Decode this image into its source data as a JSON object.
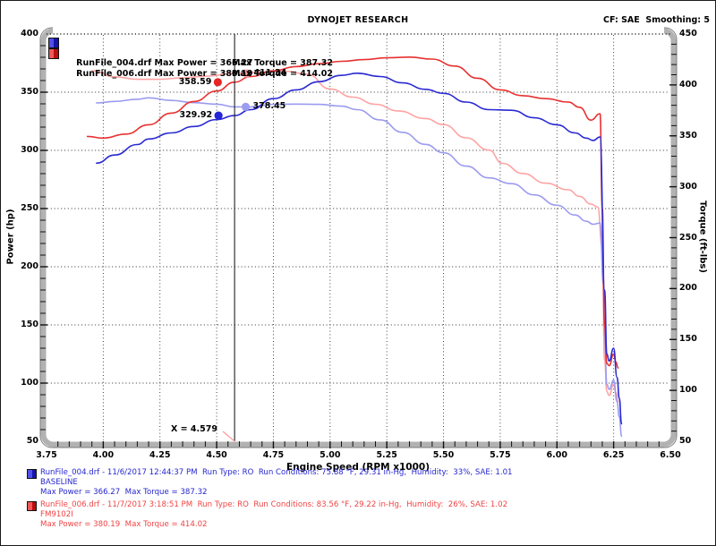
{
  "header": {
    "title": "DYNOJET RESEARCH",
    "cf_label": "CF: SAE  Smoothing: 5"
  },
  "legend": {
    "rows": [
      {
        "text1": "RunFile_004.drf Max Power = 366.27",
        "text2": "Max Torque = 387.32",
        "icon_left": "#5050e8",
        "icon_right": "#1515a8"
      },
      {
        "text1": "RunFile_006.drf Max Power = 380.19",
        "text2": "Max Torque = 414.02",
        "icon_left": "#f05858",
        "icon_right": "#b80f0f"
      }
    ]
  },
  "axes": {
    "x": {
      "label": "Engine Speed (RPM x1000)",
      "tick_labels": [
        "3.75",
        "4.00",
        "4.25",
        "4.50",
        "4.75",
        "5.00",
        "5.25",
        "5.50",
        "5.75",
        "6.00",
        "6.25",
        "6.50"
      ]
    },
    "y_left": {
      "label": "Power (hp)",
      "tick_labels": [
        "400",
        "350",
        "300",
        "250",
        "200",
        "150",
        "100",
        "50"
      ]
    },
    "y_right": {
      "label": "Torque (ft-lbs)",
      "tick_labels": [
        "450",
        "400",
        "350",
        "300",
        "250",
        "200",
        "150",
        "100",
        "50"
      ]
    }
  },
  "cursor": {
    "x_value": 4.579,
    "label": "X = 4.579",
    "line_color": "#222222",
    "leader_color": "#ff9a9a"
  },
  "markers": [
    {
      "label": "358.59",
      "axis": "power",
      "value": 358.59,
      "rpm": 4.505,
      "side": "left",
      "color": "#e82424"
    },
    {
      "label": "411.34",
      "axis": "torque",
      "value": 411.34,
      "rpm": 4.632,
      "side": "right",
      "color": "#ff9f9f"
    },
    {
      "label": "378.45",
      "axis": "torque",
      "value": 378.45,
      "rpm": 4.628,
      "side": "right",
      "color": "#9b9bf0"
    },
    {
      "label": "329.92",
      "axis": "power",
      "value": 329.92,
      "rpm": 4.508,
      "side": "left",
      "color": "#2424d8"
    }
  ],
  "chart_data": {
    "type": "line",
    "title": "DYNOJET RESEARCH",
    "xlabel": "Engine Speed (RPM x1000)",
    "ylabel_left": "Power (hp)",
    "ylabel_right": "Torque (ft-lbs)",
    "xlim": [
      3.75,
      6.5
    ],
    "ylim_left": [
      50,
      400
    ],
    "ylim_right": [
      50,
      450
    ],
    "x_major_step": 0.25,
    "grid": "dotted",
    "legend_position": "top-left",
    "cursor_x": 4.579,
    "series": [
      {
        "name": "RunFile_006.drf Torque",
        "axis": "torque",
        "color": "#ffa3a3",
        "max": 414.02,
        "points": [
          [
            3.95,
            414.0
          ],
          [
            4.05,
            408
          ],
          [
            4.15,
            405.5
          ],
          [
            4.25,
            405.5
          ],
          [
            4.35,
            407
          ],
          [
            4.45,
            408.5
          ],
          [
            4.579,
            411.34
          ],
          [
            4.7,
            412.5
          ],
          [
            4.8,
            413.5
          ],
          [
            4.9,
            410.5
          ],
          [
            5.0,
            396
          ],
          [
            5.1,
            388
          ],
          [
            5.2,
            381
          ],
          [
            5.3,
            374.5
          ],
          [
            5.42,
            367
          ],
          [
            5.5,
            361
          ],
          [
            5.6,
            348
          ],
          [
            5.7,
            336
          ],
          [
            5.76,
            323
          ],
          [
            5.85,
            313
          ],
          [
            5.95,
            303.5
          ],
          [
            6.05,
            297
          ],
          [
            6.1,
            290.5
          ],
          [
            6.15,
            283
          ],
          [
            6.18,
            280
          ],
          [
            6.2,
            240
          ],
          [
            6.21,
            130
          ],
          [
            6.22,
            99
          ],
          [
            6.23,
            95
          ],
          [
            6.25,
            106
          ],
          [
            6.26,
            98
          ],
          [
            6.27,
            89
          ]
        ]
      },
      {
        "name": "RunFile_004.drf Torque",
        "axis": "torque",
        "color": "#9b9bf0",
        "max": 387.32,
        "points": [
          [
            3.97,
            382.3
          ],
          [
            4.05,
            383.8
          ],
          [
            4.15,
            385.9
          ],
          [
            4.2,
            387.32
          ],
          [
            4.3,
            384.8
          ],
          [
            4.4,
            382.6
          ],
          [
            4.5,
            381.1
          ],
          [
            4.579,
            378.45
          ],
          [
            4.65,
            378.4
          ],
          [
            4.75,
            381.0
          ],
          [
            4.85,
            381.2
          ],
          [
            4.95,
            380.9
          ],
          [
            5.05,
            379.1
          ],
          [
            5.12,
            375.7
          ],
          [
            5.22,
            365.7
          ],
          [
            5.32,
            353.4
          ],
          [
            5.42,
            341.6
          ],
          [
            5.5,
            333.3
          ],
          [
            5.6,
            320.2
          ],
          [
            5.7,
            308.7
          ],
          [
            5.8,
            303.0
          ],
          [
            5.9,
            292.0
          ],
          [
            6.0,
            281.8
          ],
          [
            6.08,
            272.2
          ],
          [
            6.13,
            266.1
          ],
          [
            6.16,
            263.1
          ],
          [
            6.19,
            264.3
          ],
          [
            6.205,
            204
          ],
          [
            6.21,
            153
          ],
          [
            6.22,
            106
          ],
          [
            6.23,
            101
          ],
          [
            6.25,
            110
          ],
          [
            6.265,
            89
          ],
          [
            6.275,
            74
          ],
          [
            6.285,
            55
          ]
        ]
      },
      {
        "name": "RunFile_006.drf Power",
        "axis": "power",
        "color": "#e83030",
        "max": 380.19,
        "points": [
          [
            3.93,
            312
          ],
          [
            4.0,
            310.5
          ],
          [
            4.1,
            314
          ],
          [
            4.2,
            322
          ],
          [
            4.3,
            332
          ],
          [
            4.4,
            342
          ],
          [
            4.5,
            351
          ],
          [
            4.579,
            358.59
          ],
          [
            4.65,
            363.5
          ],
          [
            4.75,
            368.5
          ],
          [
            4.85,
            372
          ],
          [
            4.95,
            374.5
          ],
          [
            5.05,
            376.5
          ],
          [
            5.15,
            378
          ],
          [
            5.25,
            379.5
          ],
          [
            5.35,
            380.19
          ],
          [
            5.45,
            378.5
          ],
          [
            5.55,
            372.5
          ],
          [
            5.65,
            362
          ],
          [
            5.75,
            352
          ],
          [
            5.85,
            347
          ],
          [
            5.95,
            344.5
          ],
          [
            6.05,
            341.5
          ],
          [
            6.1,
            337
          ],
          [
            6.15,
            326
          ],
          [
            6.19,
            331.5
          ],
          [
            6.2,
            250
          ],
          [
            6.21,
            150
          ],
          [
            6.22,
            117
          ],
          [
            6.23,
            115
          ],
          [
            6.25,
            125
          ],
          [
            6.26,
            118
          ],
          [
            6.27,
            113
          ]
        ]
      },
      {
        "name": "RunFile_004.drf Power",
        "axis": "power",
        "color": "#2a2ad2",
        "max": 366.27,
        "points": [
          [
            3.97,
            289
          ],
          [
            4.05,
            296
          ],
          [
            4.15,
            305
          ],
          [
            4.2,
            309.8
          ],
          [
            4.3,
            315
          ],
          [
            4.4,
            320.5
          ],
          [
            4.5,
            326.5
          ],
          [
            4.579,
            329.92
          ],
          [
            4.65,
            335
          ],
          [
            4.75,
            344.5
          ],
          [
            4.85,
            352
          ],
          [
            4.95,
            359
          ],
          [
            5.05,
            364.5
          ],
          [
            5.12,
            366.27
          ],
          [
            5.22,
            363.5
          ],
          [
            5.32,
            358
          ],
          [
            5.42,
            352.5
          ],
          [
            5.5,
            349
          ],
          [
            5.6,
            341.5
          ],
          [
            5.7,
            335
          ],
          [
            5.8,
            334.5
          ],
          [
            5.9,
            328
          ],
          [
            6.0,
            322
          ],
          [
            6.08,
            315
          ],
          [
            6.13,
            310.5
          ],
          [
            6.16,
            308.5
          ],
          [
            6.19,
            311.5
          ],
          [
            6.21,
            180
          ],
          [
            6.22,
            125
          ],
          [
            6.23,
            119
          ],
          [
            6.25,
            130
          ],
          [
            6.265,
            105
          ],
          [
            6.275,
            87
          ],
          [
            6.285,
            65
          ]
        ]
      }
    ]
  },
  "footer": {
    "runs": [
      {
        "color": "#2626cf",
        "icon_left": "#5050e8",
        "icon_right": "#1515a8",
        "line1": "RunFile_004.drf - 11/6/2017 12:44:37 PM  Run Type: RO  Run Conditions: 75.88 °F, 29.31 in-Hg,  Humidity:  33%, SAE: 1.01",
        "line2": "BASELINE",
        "line3": "Max Power = 366.27  Max Torque = 387.32"
      },
      {
        "color": "#f04444",
        "icon_left": "#f05858",
        "icon_right": "#b80f0f",
        "line1": "RunFile_006.drf - 11/7/2017 3:18:51 PM  Run Type: RO  Run Conditions: 83.56 °F, 29.22 in-Hg,  Humidity:  26%, SAE: 1.02",
        "line2": "FM9102I",
        "line3": "Max Power = 380.19  Max Torque = 414.02"
      }
    ]
  }
}
